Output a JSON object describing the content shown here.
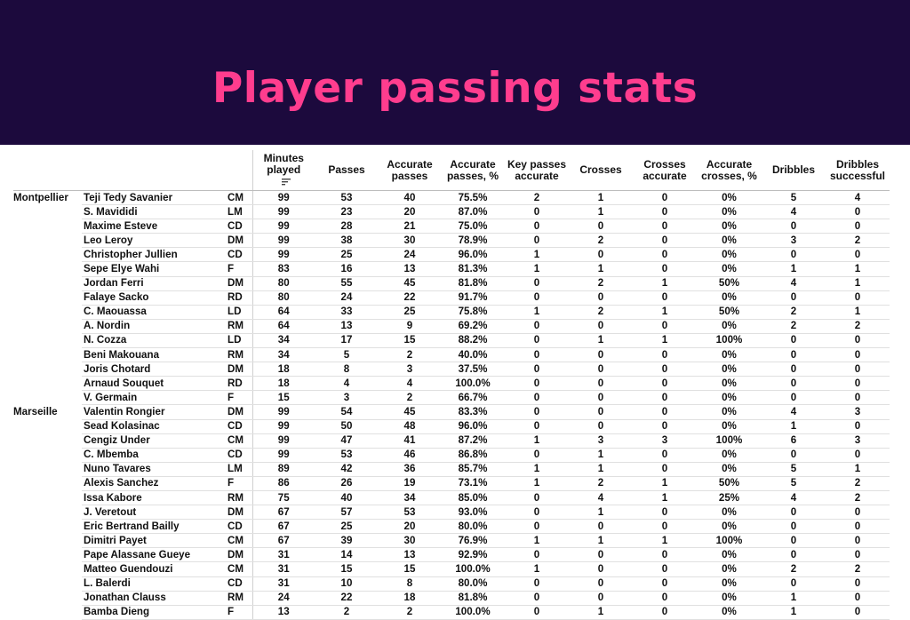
{
  "title": "Player passing stats",
  "colors": {
    "banner_bg": "#1c0a3d",
    "title_color": "#ff3d8e"
  },
  "columns": [
    "Minutes played",
    "Passes",
    "Accurate passes",
    "Accurate passes, %",
    "Key passes accurate",
    "Crosses",
    "Crosses accurate",
    "Accurate crosses, %",
    "Dribbles",
    "Dribbles successful"
  ],
  "sort_icon": "sort-descending-icon",
  "teams": [
    {
      "name": "Montpellier",
      "players": [
        {
          "name": "Teji Tedy Savanier",
          "pos": "CM",
          "stats": [
            "99",
            "53",
            "40",
            "75.5%",
            "2",
            "1",
            "0",
            "0%",
            "5",
            "4"
          ]
        },
        {
          "name": "S. Mavididi",
          "pos": "LM",
          "stats": [
            "99",
            "23",
            "20",
            "87.0%",
            "0",
            "1",
            "0",
            "0%",
            "4",
            "0"
          ]
        },
        {
          "name": "Maxime Esteve",
          "pos": "CD",
          "stats": [
            "99",
            "28",
            "21",
            "75.0%",
            "0",
            "0",
            "0",
            "0%",
            "0",
            "0"
          ]
        },
        {
          "name": "Leo Leroy",
          "pos": "DM",
          "stats": [
            "99",
            "38",
            "30",
            "78.9%",
            "0",
            "2",
            "0",
            "0%",
            "3",
            "2"
          ]
        },
        {
          "name": "Christopher Jullien",
          "pos": "CD",
          "stats": [
            "99",
            "25",
            "24",
            "96.0%",
            "1",
            "0",
            "0",
            "0%",
            "0",
            "0"
          ]
        },
        {
          "name": "Sepe Elye Wahi",
          "pos": "F",
          "stats": [
            "83",
            "16",
            "13",
            "81.3%",
            "1",
            "1",
            "0",
            "0%",
            "1",
            "1"
          ]
        },
        {
          "name": "Jordan Ferri",
          "pos": "DM",
          "stats": [
            "80",
            "55",
            "45",
            "81.8%",
            "0",
            "2",
            "1",
            "50%",
            "4",
            "1"
          ]
        },
        {
          "name": "Falaye Sacko",
          "pos": "RD",
          "stats": [
            "80",
            "24",
            "22",
            "91.7%",
            "0",
            "0",
            "0",
            "0%",
            "0",
            "0"
          ]
        },
        {
          "name": "C. Maouassa",
          "pos": "LD",
          "stats": [
            "64",
            "33",
            "25",
            "75.8%",
            "1",
            "2",
            "1",
            "50%",
            "2",
            "1"
          ]
        },
        {
          "name": "A. Nordin",
          "pos": "RM",
          "stats": [
            "64",
            "13",
            "9",
            "69.2%",
            "0",
            "0",
            "0",
            "0%",
            "2",
            "2"
          ]
        },
        {
          "name": "N. Cozza",
          "pos": "LD",
          "stats": [
            "34",
            "17",
            "15",
            "88.2%",
            "0",
            "1",
            "1",
            "100%",
            "0",
            "0"
          ]
        },
        {
          "name": "Beni Makouana",
          "pos": "RM",
          "stats": [
            "34",
            "5",
            "2",
            "40.0%",
            "0",
            "0",
            "0",
            "0%",
            "0",
            "0"
          ]
        },
        {
          "name": "Joris Chotard",
          "pos": "DM",
          "stats": [
            "18",
            "8",
            "3",
            "37.5%",
            "0",
            "0",
            "0",
            "0%",
            "0",
            "0"
          ]
        },
        {
          "name": "Arnaud Souquet",
          "pos": "RD",
          "stats": [
            "18",
            "4",
            "4",
            "100.0%",
            "0",
            "0",
            "0",
            "0%",
            "0",
            "0"
          ]
        },
        {
          "name": "V. Germain",
          "pos": "F",
          "stats": [
            "15",
            "3",
            "2",
            "66.7%",
            "0",
            "0",
            "0",
            "0%",
            "0",
            "0"
          ]
        }
      ]
    },
    {
      "name": "Marseille",
      "players": [
        {
          "name": "Valentin Rongier",
          "pos": "DM",
          "stats": [
            "99",
            "54",
            "45",
            "83.3%",
            "0",
            "0",
            "0",
            "0%",
            "4",
            "3"
          ]
        },
        {
          "name": "Sead Kolasinac",
          "pos": "CD",
          "stats": [
            "99",
            "50",
            "48",
            "96.0%",
            "0",
            "0",
            "0",
            "0%",
            "1",
            "0"
          ]
        },
        {
          "name": "Cengiz Under",
          "pos": "CM",
          "stats": [
            "99",
            "47",
            "41",
            "87.2%",
            "1",
            "3",
            "3",
            "100%",
            "6",
            "3"
          ]
        },
        {
          "name": "C. Mbemba",
          "pos": "CD",
          "stats": [
            "99",
            "53",
            "46",
            "86.8%",
            "0",
            "1",
            "0",
            "0%",
            "0",
            "0"
          ]
        },
        {
          "name": "Nuno Tavares",
          "pos": "LM",
          "stats": [
            "89",
            "42",
            "36",
            "85.7%",
            "1",
            "1",
            "0",
            "0%",
            "5",
            "1"
          ]
        },
        {
          "name": "Alexis Sanchez",
          "pos": "F",
          "stats": [
            "86",
            "26",
            "19",
            "73.1%",
            "1",
            "2",
            "1",
            "50%",
            "5",
            "2"
          ]
        },
        {
          "name": "Issa Kabore",
          "pos": "RM",
          "stats": [
            "75",
            "40",
            "34",
            "85.0%",
            "0",
            "4",
            "1",
            "25%",
            "4",
            "2"
          ]
        },
        {
          "name": "J. Veretout",
          "pos": "DM",
          "stats": [
            "67",
            "57",
            "53",
            "93.0%",
            "0",
            "1",
            "0",
            "0%",
            "0",
            "0"
          ]
        },
        {
          "name": "Eric Bertrand Bailly",
          "pos": "CD",
          "stats": [
            "67",
            "25",
            "20",
            "80.0%",
            "0",
            "0",
            "0",
            "0%",
            "0",
            "0"
          ]
        },
        {
          "name": "Dimitri Payet",
          "pos": "CM",
          "stats": [
            "67",
            "39",
            "30",
            "76.9%",
            "1",
            "1",
            "1",
            "100%",
            "0",
            "0"
          ]
        },
        {
          "name": "Pape Alassane Gueye",
          "pos": "DM",
          "stats": [
            "31",
            "14",
            "13",
            "92.9%",
            "0",
            "0",
            "0",
            "0%",
            "0",
            "0"
          ]
        },
        {
          "name": "Matteo Guendouzi",
          "pos": "CM",
          "stats": [
            "31",
            "15",
            "15",
            "100.0%",
            "1",
            "0",
            "0",
            "0%",
            "2",
            "2"
          ]
        },
        {
          "name": "L. Balerdi",
          "pos": "CD",
          "stats": [
            "31",
            "10",
            "8",
            "80.0%",
            "0",
            "0",
            "0",
            "0%",
            "0",
            "0"
          ]
        },
        {
          "name": "Jonathan Clauss",
          "pos": "RM",
          "stats": [
            "24",
            "22",
            "18",
            "81.8%",
            "0",
            "0",
            "0",
            "0%",
            "1",
            "0"
          ]
        },
        {
          "name": "Bamba Dieng",
          "pos": "F",
          "stats": [
            "13",
            "2",
            "2",
            "100.0%",
            "0",
            "1",
            "0",
            "0%",
            "1",
            "0"
          ]
        }
      ]
    }
  ]
}
